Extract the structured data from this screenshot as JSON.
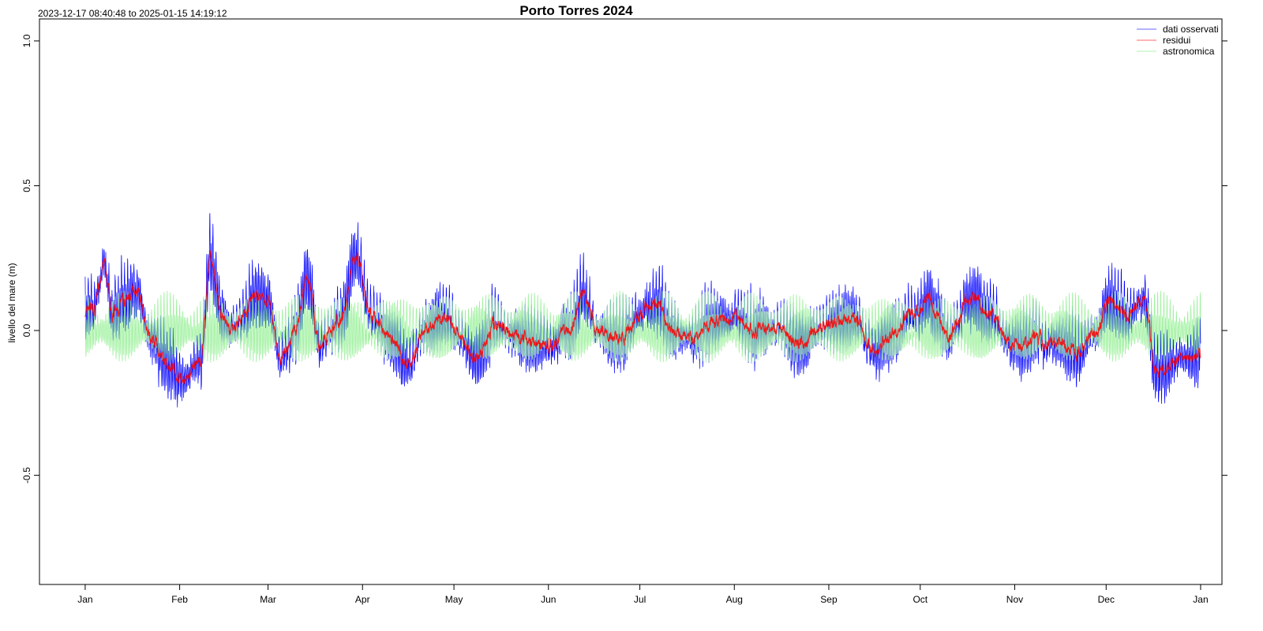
{
  "chart_data": {
    "type": "line",
    "title": "Porto Torres 2024",
    "subtitle": "2023-12-17 08:40:48 to 2025-01-15 14:19:12",
    "xlabel": "",
    "ylabel": "livello del mare (m)",
    "ylim": [
      -0.877,
      1.076
    ],
    "xlim": [
      "2023-12-17",
      "2025-01-08"
    ],
    "yticks": [
      {
        "value": 1.0,
        "label": "1.0"
      },
      {
        "value": 0.5,
        "label": "0.5"
      },
      {
        "value": 0.0,
        "label": "0.0"
      },
      {
        "value": -0.5,
        "label": "-0.5"
      }
    ],
    "xticks": [
      {
        "date": "2024-01-01",
        "label": "Jan"
      },
      {
        "date": "2024-02-01",
        "label": "Feb"
      },
      {
        "date": "2024-03-01",
        "label": "Mar"
      },
      {
        "date": "2024-04-01",
        "label": "Apr"
      },
      {
        "date": "2024-05-01",
        "label": "May"
      },
      {
        "date": "2024-06-01",
        "label": "Jun"
      },
      {
        "date": "2024-07-01",
        "label": "Jul"
      },
      {
        "date": "2024-08-01",
        "label": "Aug"
      },
      {
        "date": "2024-09-01",
        "label": "Sep"
      },
      {
        "date": "2024-10-01",
        "label": "Oct"
      },
      {
        "date": "2024-11-01",
        "label": "Nov"
      },
      {
        "date": "2024-12-01",
        "label": "Dec"
      },
      {
        "date": "2025-01-01",
        "label": "Jan"
      }
    ],
    "grid": false,
    "legend_position": "top-right",
    "series": [
      {
        "name": "dati osservati",
        "color": "#0000ff"
      },
      {
        "name": "residui",
        "color": "#ff0000",
        "points": [
          [
            "2024-01-01",
            0.06
          ],
          [
            "2024-01-04",
            0.08
          ],
          [
            "2024-01-07",
            0.22
          ],
          [
            "2024-01-10",
            0.05
          ],
          [
            "2024-01-14",
            0.1
          ],
          [
            "2024-01-18",
            0.15
          ],
          [
            "2024-01-22",
            -0.02
          ],
          [
            "2024-01-28",
            -0.12
          ],
          [
            "2024-02-03",
            -0.17
          ],
          [
            "2024-02-08",
            -0.1
          ],
          [
            "2024-02-11",
            0.25
          ],
          [
            "2024-02-15",
            0.05
          ],
          [
            "2024-02-19",
            0.0
          ],
          [
            "2024-02-24",
            0.1
          ],
          [
            "2024-03-01",
            0.11
          ],
          [
            "2024-03-05",
            -0.1
          ],
          [
            "2024-03-10",
            0.0
          ],
          [
            "2024-03-14",
            0.18
          ],
          [
            "2024-03-18",
            -0.05
          ],
          [
            "2024-03-24",
            0.03
          ],
          [
            "2024-03-30",
            0.25
          ],
          [
            "2024-04-04",
            0.05
          ],
          [
            "2024-04-10",
            -0.02
          ],
          [
            "2024-04-16",
            -0.12
          ],
          [
            "2024-04-22",
            0.0
          ],
          [
            "2024-04-28",
            0.05
          ],
          [
            "2024-05-03",
            -0.02
          ],
          [
            "2024-05-08",
            -0.1
          ],
          [
            "2024-05-14",
            0.02
          ],
          [
            "2024-05-20",
            0.0
          ],
          [
            "2024-05-27",
            -0.04
          ],
          [
            "2024-06-02",
            -0.05
          ],
          [
            "2024-06-08",
            0.0
          ],
          [
            "2024-06-12",
            0.12
          ],
          [
            "2024-06-18",
            0.0
          ],
          [
            "2024-06-25",
            -0.03
          ],
          [
            "2024-07-01",
            0.05
          ],
          [
            "2024-07-06",
            0.1
          ],
          [
            "2024-07-12",
            0.0
          ],
          [
            "2024-07-18",
            -0.03
          ],
          [
            "2024-07-25",
            0.03
          ],
          [
            "2024-08-01",
            0.05
          ],
          [
            "2024-08-08",
            0.0
          ],
          [
            "2024-08-15",
            0.02
          ],
          [
            "2024-08-22",
            -0.05
          ],
          [
            "2024-08-28",
            0.0
          ],
          [
            "2024-09-04",
            0.03
          ],
          [
            "2024-09-10",
            0.04
          ],
          [
            "2024-09-16",
            -0.07
          ],
          [
            "2024-09-22",
            -0.02
          ],
          [
            "2024-09-28",
            0.05
          ],
          [
            "2024-10-04",
            0.1
          ],
          [
            "2024-10-10",
            -0.02
          ],
          [
            "2024-10-17",
            0.12
          ],
          [
            "2024-10-24",
            0.05
          ],
          [
            "2024-10-31",
            -0.05
          ],
          [
            "2024-11-07",
            -0.03
          ],
          [
            "2024-11-14",
            -0.05
          ],
          [
            "2024-11-21",
            -0.08
          ],
          [
            "2024-11-28",
            0.0
          ],
          [
            "2024-12-02",
            0.1
          ],
          [
            "2024-12-08",
            0.05
          ],
          [
            "2024-12-13",
            0.12
          ],
          [
            "2024-12-18",
            -0.15
          ],
          [
            "2024-12-24",
            -0.1
          ],
          [
            "2024-12-31",
            -0.08
          ]
        ]
      },
      {
        "name": "astronomica",
        "color": "#90ee90"
      }
    ]
  }
}
